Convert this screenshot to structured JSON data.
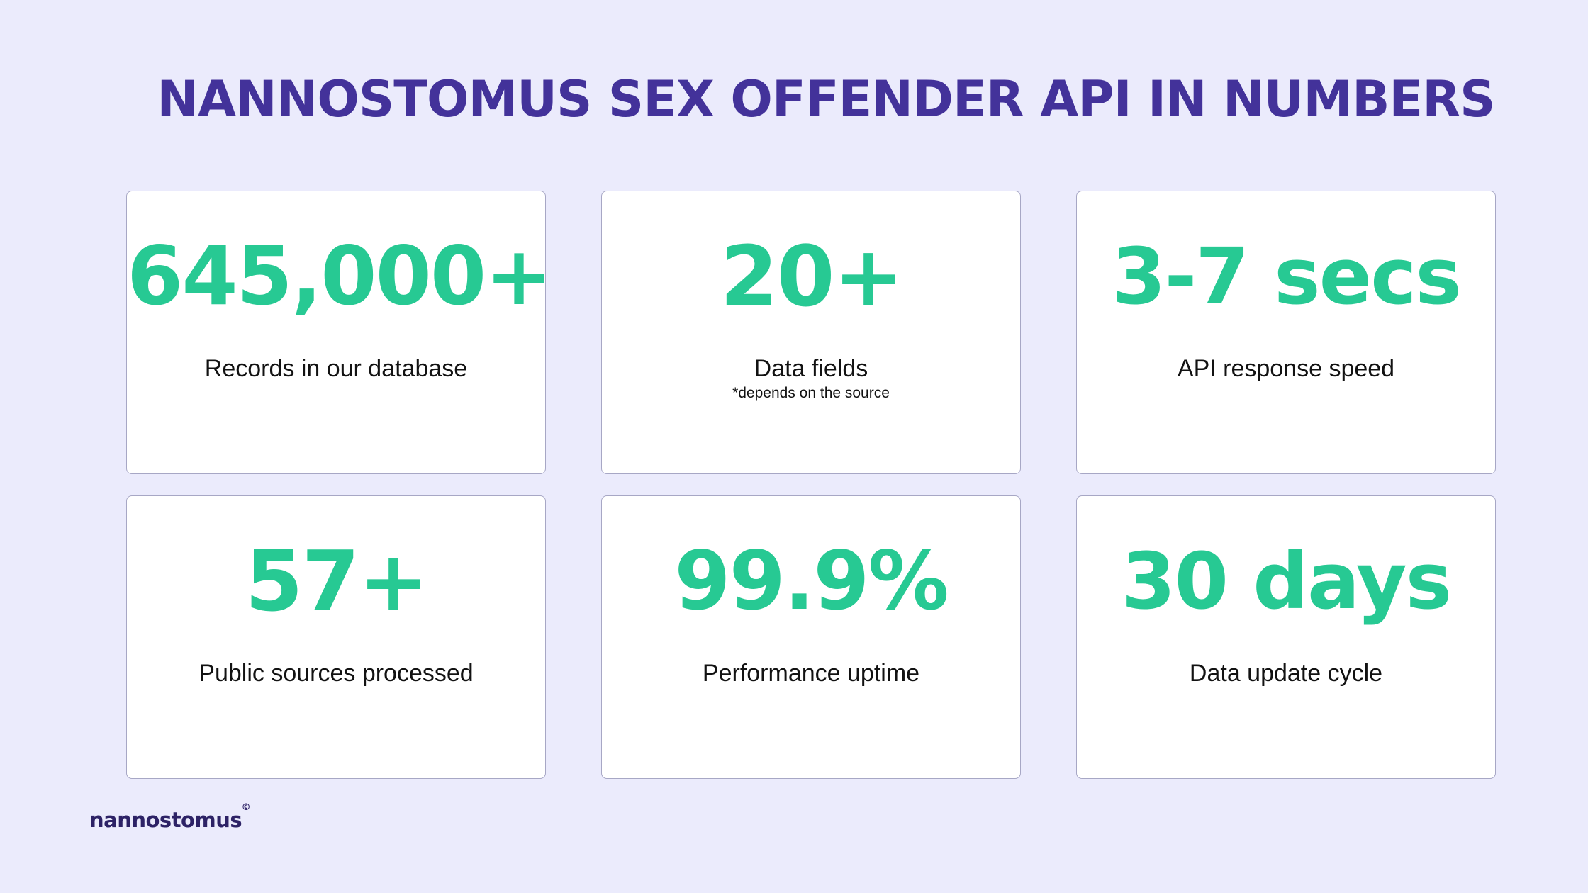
{
  "title": "NANNOSTOMUS SEX OFFENDER API IN NUMBERS",
  "colors": {
    "background": "#ebebfc",
    "title": "#43329a",
    "accent": "#27c993",
    "text": "#121212"
  },
  "stats": [
    {
      "value": "645,000+",
      "label": "Records in our database"
    },
    {
      "value": "20+",
      "label": "Data fields",
      "note": "*depends on the source"
    },
    {
      "value": "3-7 secs",
      "label": "API response speed"
    },
    {
      "value": "57+",
      "label": "Public sources processed"
    },
    {
      "value": "99.9%",
      "label": "Performance uptime"
    },
    {
      "value": "30 days",
      "label": "Data update cycle"
    }
  ],
  "logo": {
    "text": "nannostomus",
    "mark": "©"
  }
}
